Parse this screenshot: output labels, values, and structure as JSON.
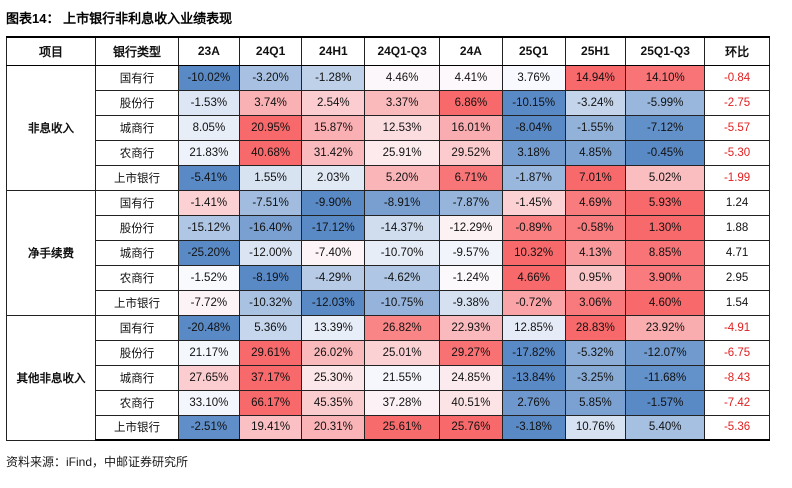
{
  "title": "图表14： 上市银行非利息收入业绩表现",
  "source": "资料来源：iFind，中邮证券研究所",
  "heatmap_colors": {
    "min_blue": "#5A8AC6",
    "mid_white": "#FCFCFF",
    "max_red": "#F8696B",
    "negative_qoq_text": "#e02020",
    "positive_qoq_text": "#1a1a1a"
  },
  "chart_data": {
    "type": "table",
    "title": "上市银行非利息收入业绩表现",
    "columns": [
      "项目",
      "银行类型",
      "23A",
      "24Q1",
      "24H1",
      "24Q1-Q3",
      "24A",
      "25Q1",
      "25H1",
      "25Q1-Q3",
      "环比"
    ],
    "value_columns": [
      "23A",
      "24Q1",
      "24H1",
      "24Q1-Q3",
      "24A",
      "25Q1",
      "25H1",
      "25Q1-Q3"
    ],
    "unit": "percent",
    "groups": [
      {
        "name": "非息收入",
        "rows": [
          {
            "bank": "国有行",
            "values": [
              -10.02,
              -3.2,
              -1.28,
              4.46,
              4.41,
              3.76,
              14.94,
              14.1
            ],
            "qoq": -0.84
          },
          {
            "bank": "股份行",
            "values": [
              -1.53,
              3.74,
              2.54,
              3.37,
              6.86,
              -10.15,
              -3.24,
              -5.99
            ],
            "qoq": -2.75
          },
          {
            "bank": "城商行",
            "values": [
              8.05,
              20.95,
              15.87,
              12.53,
              16.01,
              -8.04,
              -1.55,
              -7.12
            ],
            "qoq": -5.57
          },
          {
            "bank": "农商行",
            "values": [
              21.83,
              40.68,
              31.42,
              25.91,
              29.52,
              3.18,
              4.85,
              -0.45
            ],
            "qoq": -5.3
          },
          {
            "bank": "上市银行",
            "values": [
              -5.41,
              1.55,
              2.03,
              5.2,
              6.71,
              -1.87,
              7.01,
              5.02
            ],
            "qoq": -1.99
          }
        ]
      },
      {
        "name": "净手续费",
        "rows": [
          {
            "bank": "国有行",
            "values": [
              -1.41,
              -7.51,
              -9.9,
              -8.91,
              -7.87,
              -1.45,
              4.69,
              5.93
            ],
            "qoq": 1.24
          },
          {
            "bank": "股份行",
            "values": [
              -15.12,
              -16.4,
              -17.12,
              -14.37,
              -12.29,
              -0.89,
              -0.58,
              1.3
            ],
            "qoq": 1.88
          },
          {
            "bank": "城商行",
            "values": [
              -25.2,
              -12.0,
              -7.4,
              -10.7,
              -9.57,
              10.32,
              4.13,
              8.85
            ],
            "qoq": 4.71
          },
          {
            "bank": "农商行",
            "values": [
              -1.52,
              -8.19,
              -4.29,
              -4.62,
              -1.24,
              4.66,
              0.95,
              3.9
            ],
            "qoq": 2.95
          },
          {
            "bank": "上市银行",
            "values": [
              -7.72,
              -10.32,
              -12.03,
              -10.75,
              -9.38,
              -0.72,
              3.06,
              4.6
            ],
            "qoq": 1.54
          }
        ]
      },
      {
        "name": "其他非息收入",
        "rows": [
          {
            "bank": "国有行",
            "values": [
              -20.48,
              5.36,
              13.39,
              26.82,
              22.93,
              12.85,
              28.83,
              23.92
            ],
            "qoq": -4.91
          },
          {
            "bank": "股份行",
            "values": [
              21.17,
              29.61,
              26.02,
              25.01,
              29.27,
              -17.82,
              -5.32,
              -12.07
            ],
            "qoq": -6.75
          },
          {
            "bank": "城商行",
            "values": [
              27.65,
              37.17,
              25.3,
              21.55,
              24.85,
              -13.84,
              -3.25,
              -11.68
            ],
            "qoq": -8.43
          },
          {
            "bank": "农商行",
            "values": [
              33.1,
              66.17,
              45.35,
              37.28,
              40.51,
              2.76,
              5.85,
              -1.57
            ],
            "qoq": -7.42
          },
          {
            "bank": "上市银行",
            "values": [
              -2.51,
              19.41,
              20.31,
              25.61,
              25.76,
              -3.18,
              10.76,
              5.4
            ],
            "qoq": -5.36
          }
        ]
      }
    ]
  }
}
